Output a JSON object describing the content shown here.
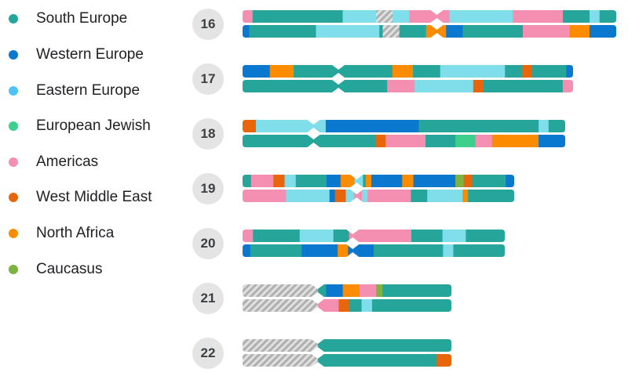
{
  "legend": [
    {
      "label": "South Europe",
      "color": "#26a69a"
    },
    {
      "label": "Western Europe",
      "color": "#0b78d0"
    },
    {
      "label": "Eastern Europe",
      "color": "#4fc3f7"
    },
    {
      "label": "European Jewish",
      "color": "#3ecf8e"
    },
    {
      "label": "Americas",
      "color": "#f48fb1"
    },
    {
      "label": "West Middle East",
      "color": "#e8650a"
    },
    {
      "label": "North Africa",
      "color": "#fb8c00"
    },
    {
      "label": "Caucasus",
      "color": "#7cb342"
    }
  ],
  "chromosomes": [
    {
      "number": "16",
      "centromere": 0.52,
      "strands": [
        [
          [
            "americas",
            0.03
          ],
          [
            "south",
            0.27
          ],
          [
            "eastern",
            0.1
          ],
          [
            "unassigned",
            0.05
          ],
          [
            "eastern",
            0.05
          ],
          [
            "americas",
            0.12
          ],
          [
            "eastern",
            0.19
          ],
          [
            "americas",
            0.15
          ],
          [
            "south",
            0.08
          ],
          [
            "eastern",
            0.03
          ],
          [
            "south",
            0.05
          ]
        ],
        [
          [
            "western",
            0.02
          ],
          [
            "south",
            0.2
          ],
          [
            "eastern",
            0.19
          ],
          [
            "south",
            0.01
          ],
          [
            "unassigned",
            0.05
          ],
          [
            "south",
            0.08
          ],
          [
            "north_africa",
            0.06
          ],
          [
            "western",
            0.05
          ],
          [
            "south",
            0.18
          ],
          [
            "americas",
            0.14
          ],
          [
            "north_africa",
            0.06
          ],
          [
            "western",
            0.08
          ]
        ]
      ]
    },
    {
      "number": "17",
      "centromere": 0.29,
      "strands": [
        [
          [
            "western",
            0.08
          ],
          [
            "north_africa",
            0.07
          ],
          [
            "south",
            0.13
          ],
          [
            "south",
            0.16
          ],
          [
            "north_africa",
            0.06
          ],
          [
            "south",
            0.08
          ],
          [
            "eastern",
            0.19
          ],
          [
            "south",
            0.05
          ],
          [
            "west_me",
            0.03
          ],
          [
            "south",
            0.1
          ],
          [
            "western",
            0.02
          ]
        ],
        [
          [
            "south",
            0.05
          ],
          [
            "south",
            0.22
          ],
          [
            "south",
            0.15
          ],
          [
            "americas",
            0.08
          ],
          [
            "eastern",
            0.17
          ],
          [
            "west_me",
            0.03
          ],
          [
            "south",
            0.23
          ],
          [
            "americas",
            0.03
          ]
        ]
      ]
    },
    {
      "number": "18",
      "centromere": 0.22,
      "strands": [
        [
          [
            "west_me",
            0.04
          ],
          [
            "eastern",
            0.16
          ],
          [
            "eastern",
            0.05
          ],
          [
            "western",
            0.28
          ],
          [
            "south",
            0.36
          ],
          [
            "eastern",
            0.03
          ],
          [
            "south",
            0.05
          ]
        ],
        [
          [
            "south",
            0.2
          ],
          [
            "south",
            0.2
          ],
          [
            "west_me",
            0.03
          ],
          [
            "americas",
            0.12
          ],
          [
            "south",
            0.09
          ],
          [
            "european_jewish",
            0.06
          ],
          [
            "americas",
            0.05
          ],
          [
            "north_africa",
            0.14
          ],
          [
            "western",
            0.08
          ]
        ]
      ]
    },
    {
      "number": "19",
      "centromere": 0.42,
      "strands": [
        [
          [
            "south",
            0.03
          ],
          [
            "americas",
            0.08
          ],
          [
            "west_me",
            0.04
          ],
          [
            "eastern",
            0.04
          ],
          [
            "south",
            0.11
          ],
          [
            "western",
            0.05
          ],
          [
            "north_africa",
            0.05
          ],
          [
            "eastern",
            0.03
          ],
          [
            "south",
            0.01
          ],
          [
            "north_africa",
            0.02
          ],
          [
            "western",
            0.11
          ],
          [
            "north_africa",
            0.04
          ],
          [
            "western",
            0.15
          ],
          [
            "caucasus",
            0.03
          ],
          [
            "west_me",
            0.03
          ],
          [
            "south",
            0.12
          ],
          [
            "western",
            0.03
          ]
        ],
        [
          [
            "americas",
            0.16
          ],
          [
            "eastern",
            0.16
          ],
          [
            "western",
            0.02
          ],
          [
            "west_me",
            0.04
          ],
          [
            "eastern",
            0.03
          ],
          [
            "americas",
            0.03
          ],
          [
            "eastern",
            0.02
          ],
          [
            "americas",
            0.16
          ],
          [
            "south",
            0.06
          ],
          [
            "eastern",
            0.13
          ],
          [
            "north_africa",
            0.02
          ],
          [
            "south",
            0.17
          ]
        ]
      ]
    },
    {
      "number": "20",
      "centromere": 0.42,
      "strands": [
        [
          [
            "americas",
            0.04
          ],
          [
            "south",
            0.18
          ],
          [
            "eastern",
            0.13
          ],
          [
            "south",
            0.06
          ],
          [
            "americas",
            0.05
          ],
          [
            "americas",
            0.19
          ],
          [
            "south",
            0.12
          ],
          [
            "eastern",
            0.09
          ],
          [
            "south",
            0.15
          ]
        ],
        [
          [
            "western",
            0.03
          ],
          [
            "south",
            0.2
          ],
          [
            "western",
            0.14
          ],
          [
            "north_africa",
            0.04
          ],
          [
            "western",
            0.04
          ],
          [
            "western",
            0.06
          ],
          [
            "south",
            0.27
          ],
          [
            "eastern",
            0.04
          ],
          [
            "south",
            0.2
          ]
        ]
      ]
    },
    {
      "number": "21",
      "centromere": 0.36,
      "strands": [
        [
          [
            "unassigned",
            0.3
          ],
          [
            "unassigned",
            0.06
          ],
          [
            "south",
            0.04
          ],
          [
            "western",
            0.08
          ],
          [
            "north_africa",
            0.08
          ],
          [
            "americas",
            0.08
          ],
          [
            "caucasus",
            0.03
          ],
          [
            "south",
            0.33
          ]
        ],
        [
          [
            "unassigned",
            0.3
          ],
          [
            "unassigned",
            0.06
          ],
          [
            "americas",
            0.1
          ],
          [
            "west_me",
            0.05
          ],
          [
            "south",
            0.06
          ],
          [
            "eastern",
            0.05
          ],
          [
            "south",
            0.38
          ]
        ]
      ]
    },
    {
      "number": "22",
      "centromere": 0.36,
      "strands": [
        [
          [
            "unassigned",
            0.3
          ],
          [
            "unassigned",
            0.06
          ],
          [
            "south",
            0.64
          ]
        ],
        [
          [
            "unassigned",
            0.3
          ],
          [
            "unassigned",
            0.06
          ],
          [
            "south",
            0.57
          ],
          [
            "west_me",
            0.07
          ]
        ]
      ]
    }
  ]
}
